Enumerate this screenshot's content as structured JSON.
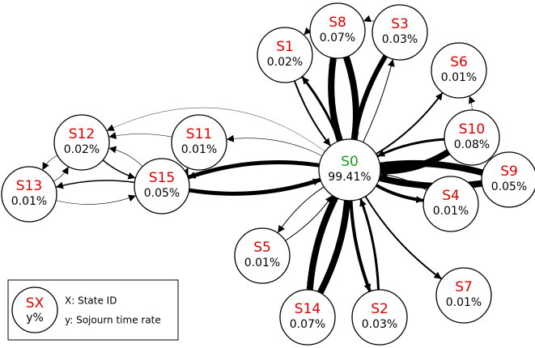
{
  "nodes": [
    {
      "id": "S0",
      "rate": "99.41%"
    },
    {
      "id": "S1",
      "rate": "0.02%"
    },
    {
      "id": "S8",
      "rate": "0.07%"
    },
    {
      "id": "S3",
      "rate": "0.03%"
    },
    {
      "id": "S6",
      "rate": "0.01%"
    },
    {
      "id": "S10",
      "rate": "0.08%"
    },
    {
      "id": "S9",
      "rate": "0.05%"
    },
    {
      "id": "S4",
      "rate": "0.01%"
    },
    {
      "id": "S7",
      "rate": "0.01%"
    },
    {
      "id": "S2",
      "rate": "0.03%"
    },
    {
      "id": "S14",
      "rate": "0.07%"
    },
    {
      "id": "S5",
      "rate": "0.01%"
    },
    {
      "id": "S11",
      "rate": "0.01%"
    },
    {
      "id": "S15",
      "rate": "0.05%"
    },
    {
      "id": "S12",
      "rate": "0.02%"
    },
    {
      "id": "S13",
      "rate": "0.01%"
    }
  ],
  "legend": {
    "symbol_id": "SX",
    "symbol_rate": "y%",
    "id_desc": "X: State ID",
    "rate_desc": "y: Sojourn time rate"
  }
}
